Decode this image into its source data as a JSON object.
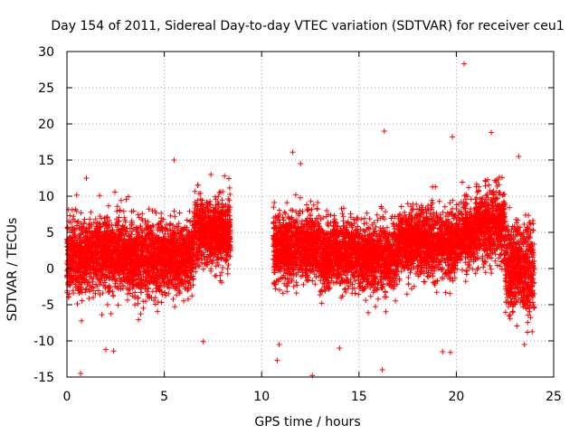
{
  "chart_data": {
    "type": "scatter",
    "title": "Day 154 of 2011, Sidereal Day-to-day VTEC variation (SDTVAR) for receiver ceu1",
    "xlabel": "GPS time / hours",
    "ylabel": "SDTVAR / TECUs",
    "xlim": [
      0,
      25
    ],
    "ylim": [
      -15,
      30
    ],
    "xticks": [
      0,
      5,
      10,
      15,
      20,
      25
    ],
    "yticks": [
      -15,
      -10,
      -5,
      0,
      5,
      10,
      15,
      20,
      25,
      30
    ],
    "grid": true,
    "marker": "+",
    "color": "#ff0000",
    "data_gap_hours": [
      8.4,
      10.6
    ],
    "series": [
      {
        "name": "SDTVAR",
        "bands": [
          {
            "x_start": 0.0,
            "x_end": 1.0,
            "mean": 1.5,
            "spread": 3.5
          },
          {
            "x_start": 1.0,
            "x_end": 3.0,
            "mean": 2.0,
            "spread": 3.3
          },
          {
            "x_start": 3.0,
            "x_end": 5.0,
            "mean": 1.5,
            "spread": 3.3
          },
          {
            "x_start": 5.0,
            "x_end": 6.5,
            "mean": 1.5,
            "spread": 3.0
          },
          {
            "x_start": 6.5,
            "x_end": 8.4,
            "mean": 5.0,
            "spread": 3.0
          },
          {
            "x_start": 10.6,
            "x_end": 13.0,
            "mean": 3.0,
            "spread": 3.0
          },
          {
            "x_start": 13.0,
            "x_end": 15.0,
            "mean": 2.0,
            "spread": 3.0
          },
          {
            "x_start": 15.0,
            "x_end": 17.0,
            "mean": 1.5,
            "spread": 3.0
          },
          {
            "x_start": 17.0,
            "x_end": 20.0,
            "mean": 3.5,
            "spread": 3.0
          },
          {
            "x_start": 20.0,
            "x_end": 21.0,
            "mean": 4.5,
            "spread": 3.0
          },
          {
            "x_start": 21.0,
            "x_end": 22.5,
            "mean": 6.0,
            "spread": 3.2
          },
          {
            "x_start": 22.5,
            "x_end": 24.0,
            "mean": 0.0,
            "spread": 4.0
          }
        ],
        "outliers": [
          {
            "x": 20.4,
            "y": 28.3
          },
          {
            "x": 16.3,
            "y": 19.0
          },
          {
            "x": 19.8,
            "y": 18.2
          },
          {
            "x": 21.8,
            "y": 18.8
          },
          {
            "x": 11.6,
            "y": 16.1
          },
          {
            "x": 5.5,
            "y": 15.0
          },
          {
            "x": 23.2,
            "y": 15.5
          },
          {
            "x": 1.0,
            "y": 12.5
          },
          {
            "x": 7.4,
            "y": 13.0
          },
          {
            "x": 12.0,
            "y": 14.5
          },
          {
            "x": 0.7,
            "y": -14.5
          },
          {
            "x": 12.6,
            "y": -14.8
          },
          {
            "x": 16.2,
            "y": -14.0
          },
          {
            "x": 10.8,
            "y": -12.7
          },
          {
            "x": 10.9,
            "y": -10.5
          },
          {
            "x": 2.0,
            "y": -11.2
          },
          {
            "x": 2.4,
            "y": -11.4
          },
          {
            "x": 14.0,
            "y": -11.0
          },
          {
            "x": 19.3,
            "y": -11.5
          },
          {
            "x": 19.7,
            "y": -11.6
          },
          {
            "x": 7.0,
            "y": -10.1
          },
          {
            "x": 23.5,
            "y": -10.5
          }
        ]
      }
    ]
  }
}
